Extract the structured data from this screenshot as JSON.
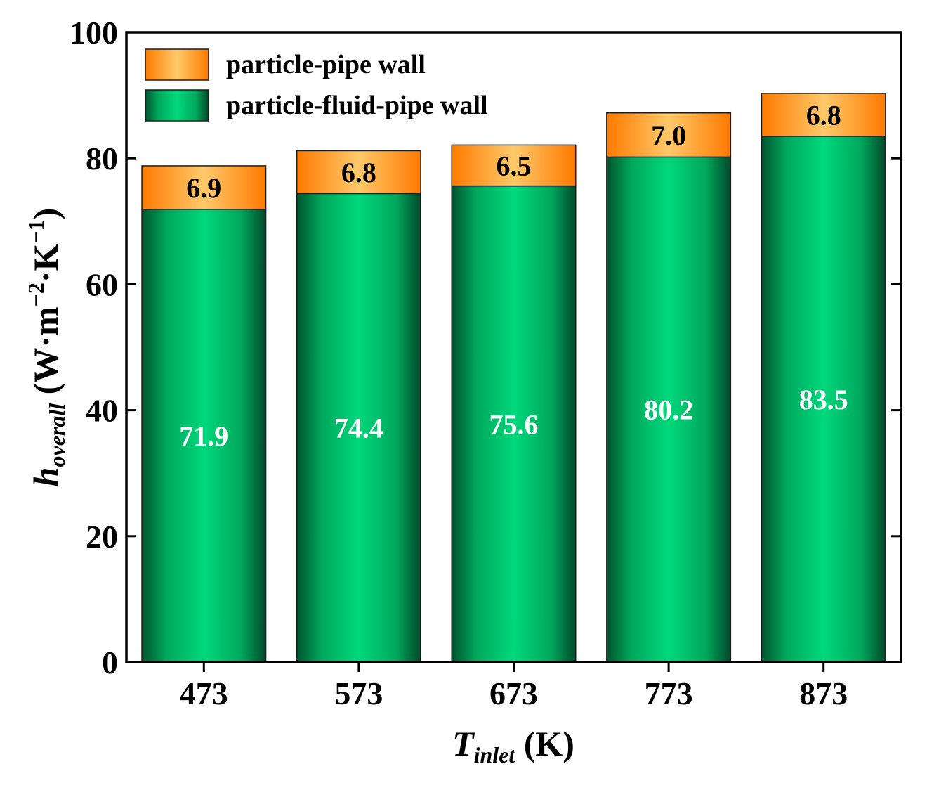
{
  "chart_data": {
    "type": "bar",
    "stacked": true,
    "categories": [
      "473",
      "573",
      "673",
      "773",
      "873"
    ],
    "series": [
      {
        "name": "particle-fluid-pipe wall",
        "values": [
          71.9,
          74.4,
          75.6,
          80.2,
          83.5
        ],
        "labels": [
          "71.9",
          "74.4",
          "75.6",
          "80.2",
          "83.5"
        ],
        "color": "#00c870"
      },
      {
        "name": "particle-pipe wall",
        "values": [
          6.9,
          6.8,
          6.5,
          7.0,
          6.8
        ],
        "labels": [
          "6.9",
          "6.8",
          "6.5",
          "7.0",
          "6.8"
        ],
        "color": "#ff9a1e"
      }
    ],
    "legend_order": [
      "particle-pipe wall",
      "particle-fluid-pipe wall"
    ],
    "legend_position": "top-left",
    "ylim": [
      0,
      100
    ],
    "yticks": [
      "0",
      "20",
      "40",
      "60",
      "80",
      "100"
    ],
    "xlabel": {
      "main": "T",
      "sub": "inlet",
      "unit": " (K)"
    },
    "ylabel": {
      "main": "h",
      "sub": "overall",
      "unit": " (W·m",
      "exp1": "−2",
      "mid": "·K",
      "exp2": "−1",
      "close": ")"
    }
  }
}
